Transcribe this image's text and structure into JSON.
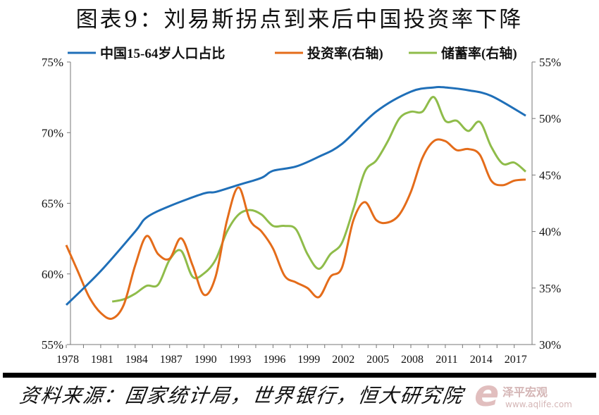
{
  "title": "图表9：刘易斯拐点到来后中国投资率下降",
  "source": "资料来源：国家统计局，世界银行，恒大研究院",
  "watermark": {
    "name": "泽平宏观",
    "url": "www.aqlife.com"
  },
  "chart_data": {
    "type": "line",
    "title": "图表9：刘易斯拐点到来后中国投资率下降",
    "x_ticks": [
      "1978",
      "1981",
      "1984",
      "1987",
      "1990",
      "1993",
      "1996",
      "1999",
      "2002",
      "2005",
      "2008",
      "2011",
      "2014",
      "2017"
    ],
    "xlim": [
      1978,
      2018
    ],
    "y_left": {
      "ylim": [
        55,
        75
      ],
      "ticks": [
        "55%",
        "60%",
        "65%",
        "70%",
        "75%"
      ],
      "tick_values": [
        55,
        60,
        65,
        70,
        75
      ]
    },
    "y_right": {
      "ylim": [
        30,
        55
      ],
      "ticks": [
        "30%",
        "35%",
        "40%",
        "45%",
        "50%",
        "55%"
      ],
      "tick_values": [
        30,
        35,
        40,
        45,
        50,
        55
      ]
    },
    "legend_position": "top",
    "series": [
      {
        "name": "中国15-64岁人口占比",
        "axis": "left",
        "color": "#1f6fb8",
        "x": [
          1978,
          1981,
          1984,
          1985,
          1987,
          1990,
          1991,
          1993,
          1995,
          1996,
          1998,
          2000,
          2002,
          2005,
          2008,
          2010,
          2011,
          2013,
          2015,
          2018
        ],
        "values": [
          57.8,
          60.2,
          63.0,
          64.0,
          64.8,
          65.7,
          65.8,
          66.3,
          66.8,
          67.3,
          67.6,
          68.3,
          69.2,
          71.5,
          72.9,
          73.2,
          73.2,
          73.0,
          72.6,
          71.2
        ]
      },
      {
        "name": "投资率(右轴)",
        "axis": "right",
        "color": "#e46c1a",
        "x": [
          1978,
          1979,
          1980,
          1981,
          1982,
          1983,
          1984,
          1985,
          1986,
          1987,
          1988,
          1989,
          1990,
          1991,
          1992,
          1993,
          1994,
          1995,
          1996,
          1997,
          1998,
          1999,
          2000,
          2001,
          2002,
          2003,
          2004,
          2005,
          2006,
          2007,
          2008,
          2009,
          2010,
          2011,
          2012,
          2013,
          2014,
          2015,
          2016,
          2017,
          2018
        ],
        "values": [
          38.8,
          36.5,
          34.2,
          32.8,
          32.3,
          33.5,
          37.0,
          39.6,
          38.0,
          37.6,
          39.4,
          37.0,
          34.4,
          36.0,
          41.0,
          43.9,
          41.0,
          40.0,
          38.5,
          36.1,
          35.5,
          35.0,
          34.2,
          36.0,
          36.8,
          41.0,
          42.6,
          41.0,
          40.8,
          41.5,
          43.5,
          46.5,
          48.0,
          48.0,
          47.2,
          47.3,
          46.8,
          44.5,
          44.1,
          44.5,
          44.6
        ]
      },
      {
        "name": "储蓄率(右轴)",
        "axis": "right",
        "color": "#8fbc4a",
        "x": [
          1982,
          1983,
          1984,
          1985,
          1986,
          1987,
          1988,
          1989,
          1990,
          1991,
          1992,
          1993,
          1994,
          1995,
          1996,
          1997,
          1998,
          1999,
          2000,
          2001,
          2002,
          2003,
          2004,
          2005,
          2006,
          2007,
          2008,
          2009,
          2010,
          2011,
          2012,
          2013,
          2014,
          2015,
          2016,
          2017,
          2018
        ],
        "values": [
          33.8,
          34.0,
          34.5,
          35.2,
          35.3,
          37.5,
          38.3,
          36.0,
          36.3,
          37.5,
          40.0,
          41.5,
          41.9,
          41.5,
          40.5,
          40.5,
          40.2,
          38.0,
          36.7,
          38.0,
          39.0,
          42.0,
          45.3,
          46.3,
          48.0,
          50.0,
          50.6,
          50.6,
          51.9,
          49.8,
          49.8,
          48.9,
          49.7,
          47.5,
          46.0,
          46.1,
          45.3
        ]
      }
    ]
  }
}
